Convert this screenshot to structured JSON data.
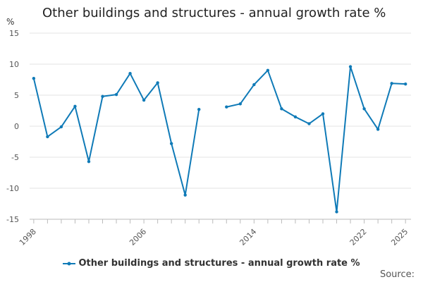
{
  "chart_data": {
    "type": "line",
    "title": "Other buildings and structures - annual growth rate %",
    "ylabel": "%",
    "xlabel": "",
    "ylim": [
      -15,
      15
    ],
    "yticks": [
      -15,
      -10,
      -5,
      0,
      5,
      10,
      15
    ],
    "xtick_labels": [
      "1998",
      "2006",
      "2014",
      "2022",
      "2025"
    ],
    "series": [
      {
        "name": "Other buildings and structures - annual growth rate %",
        "color": "#0f7ab7",
        "x": [
          1998,
          1999,
          2000,
          2001,
          2002,
          2003,
          2004,
          2005,
          2006,
          2007,
          2008,
          2009,
          2010,
          2011,
          2012,
          2013,
          2014,
          2015,
          2016,
          2017,
          2018,
          2019,
          2020,
          2021,
          2022,
          2023,
          2024,
          2025
        ],
        "values": [
          7.7,
          -1.7,
          -0.1,
          3.2,
          -5.7,
          4.8,
          5.1,
          8.5,
          4.2,
          7.0,
          -2.8,
          -11.1,
          2.7,
          null,
          3.1,
          3.6,
          6.7,
          9.0,
          2.8,
          1.5,
          0.4,
          2.0,
          -13.8,
          9.6,
          2.8,
          -0.5,
          6.9,
          6.8
        ]
      }
    ],
    "legend": "bottom",
    "grid": true
  },
  "source_label": "Source:"
}
